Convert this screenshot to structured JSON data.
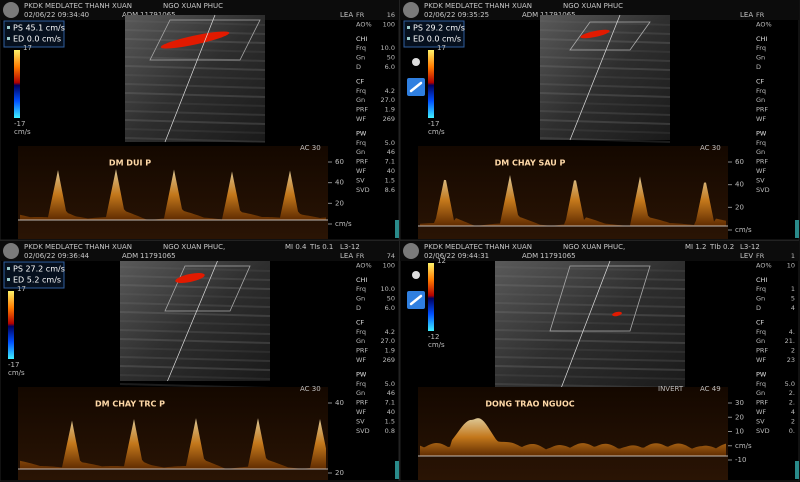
{
  "panels": [
    {
      "clinic": "PKDK MEDLATEC THANH XUAN",
      "patient": "NGO XUAN PHUC",
      "datetime": "02/06/22 09:34:40",
      "adm": "ADM",
      "patient_id": "11791065",
      "preset": "LEA",
      "measurements": [
        "PS 45.1 cm/s",
        "ED 0.0 cm/s"
      ],
      "color_scale": [
        "17",
        "-17",
        "cm/s"
      ],
      "params": [
        [
          "FR",
          "16"
        ],
        [
          "AO%",
          "100"
        ],
        [
          "CHI"
        ],
        [
          "Frq",
          "10.0"
        ],
        [
          "Gn",
          "50"
        ],
        [
          "D",
          "6.0"
        ],
        [
          "CF"
        ],
        [
          "Frq",
          "4.2"
        ],
        [
          "Gn",
          "27.0"
        ],
        [
          "PRF",
          "1.9"
        ],
        [
          "WF",
          "269"
        ],
        [
          "PW"
        ],
        [
          "Frq",
          "5.0"
        ],
        [
          "Gn",
          "46"
        ],
        [
          "PRF",
          "7.1"
        ],
        [
          "WF",
          "40"
        ],
        [
          "SV",
          "1.5"
        ],
        [
          "SVD",
          "8.6"
        ]
      ],
      "doppler": {
        "label": "DM DUI P",
        "ac": "AC 30",
        "scale": [
          "60",
          "40",
          "20",
          "cm/s"
        ]
      }
    },
    {
      "clinic": "PKDK MEDLATEC THANH XUAN",
      "patient": "NGO XUAN PHUC",
      "datetime": "02/06/22 09:35:25",
      "adm": "ADM",
      "patient_id": "11791065",
      "preset": "LEA",
      "measurements": [
        "PS 29.2 cm/s",
        "ED 0.0 cm/s"
      ],
      "color_scale": [
        "17",
        "-17",
        "cm/s"
      ],
      "params": [
        [
          "FR"
        ],
        [
          "AO%"
        ],
        [
          "CHI"
        ],
        [
          "Frq"
        ],
        [
          "Gn"
        ],
        [
          "D"
        ],
        [
          "CF"
        ],
        [
          "Frq"
        ],
        [
          "Gn"
        ],
        [
          "PRF"
        ],
        [
          "WF"
        ],
        [
          "PW"
        ],
        [
          "Frq"
        ],
        [
          "Gn"
        ],
        [
          "PRF"
        ],
        [
          "WF"
        ],
        [
          "SV"
        ],
        [
          "SVD"
        ]
      ],
      "doppler": {
        "label": "DM CHAY SAU P",
        "ac": "AC 30",
        "scale": [
          "60",
          "40",
          "20",
          "cm/s"
        ]
      }
    },
    {
      "clinic": "PKDK MEDLATEC THANH XUAN",
      "patient": "NGO XUAN PHUC,",
      "datetime": "02/06/22 09:36:44",
      "adm": "ADM",
      "patient_id": "11791065",
      "indices": [
        "MI 0.4",
        "TIs 0.1"
      ],
      "probe": "L3-12",
      "preset": "LEA",
      "measurements": [
        "PS 27.2 cm/s",
        "ED 5.2 cm/s"
      ],
      "color_scale": [
        "17",
        "-17",
        "cm/s"
      ],
      "params": [
        [
          "FR",
          "74"
        ],
        [
          "AO%",
          "100"
        ],
        [
          "CHI"
        ],
        [
          "Frq",
          "10.0"
        ],
        [
          "Gn",
          "50"
        ],
        [
          "D",
          "6.0"
        ],
        [
          "CF"
        ],
        [
          "Frq",
          "4.2"
        ],
        [
          "Gn",
          "27.0"
        ],
        [
          "PRF",
          "1.9"
        ],
        [
          "WF",
          "269"
        ],
        [
          "PW"
        ],
        [
          "Frq",
          "5.0"
        ],
        [
          "Gn",
          "46"
        ],
        [
          "PRF",
          "7.1"
        ],
        [
          "WF",
          "40"
        ],
        [
          "SV",
          "1.5"
        ],
        [
          "SVD",
          "0.8"
        ]
      ],
      "doppler": {
        "label": "DM CHAY TRC P",
        "ac": "AC 30",
        "scale": [
          "40",
          "20"
        ]
      }
    },
    {
      "clinic": "PKDK MEDLATEC THANH XUAN",
      "patient": "NGO XUAN PHUC,",
      "datetime": "02/06/22 09:44:31",
      "adm": "ADM",
      "patient_id": "11791065",
      "indices": [
        "MI 1.2",
        "TIb 0.2"
      ],
      "probe": "L3-12",
      "preset": "LEV",
      "color_scale": [
        "12",
        "-12",
        "cm/s"
      ],
      "params": [
        [
          "FR",
          "1"
        ],
        [
          "AO%",
          "10"
        ],
        [
          "CHI"
        ],
        [
          "Frq",
          "1"
        ],
        [
          "Gn",
          "5"
        ],
        [
          "D",
          "4"
        ],
        [
          "CF"
        ],
        [
          "Frq",
          "4."
        ],
        [
          "Gn",
          "21."
        ],
        [
          "PRF",
          "2"
        ],
        [
          "WF",
          "23"
        ],
        [
          "PW"
        ],
        [
          "Frq",
          "5.0"
        ],
        [
          "Gn",
          "2."
        ],
        [
          "PRF",
          "2."
        ],
        [
          "WF",
          "4"
        ],
        [
          "SV",
          "2"
        ],
        [
          "SVD",
          "0."
        ]
      ],
      "doppler": {
        "label": "DONG TRAO NGUOC",
        "invert": "INVERT",
        "ac": "AC 49",
        "scale": [
          "30",
          "20",
          "10",
          "cm/s",
          "-10"
        ]
      }
    }
  ]
}
